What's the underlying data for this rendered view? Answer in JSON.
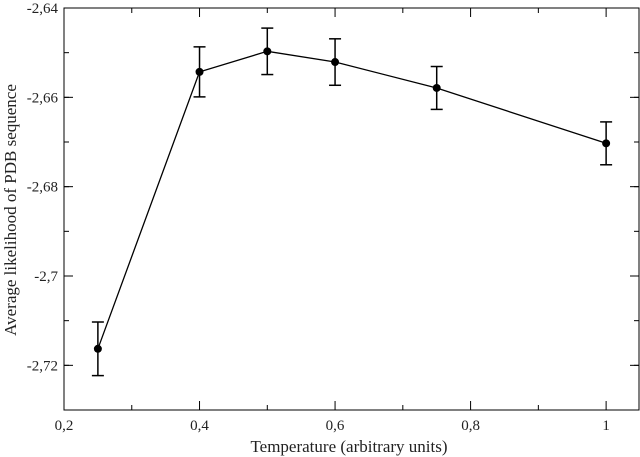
{
  "chart_data": {
    "type": "line",
    "xlabel": "Temperature (arbitrary units)",
    "ylabel": "Average likelihood of PDB sequence",
    "xlim": [
      0.2,
      1.05
    ],
    "ylim": [
      -2.73,
      -2.64
    ],
    "x_ticks": [
      0.2,
      0.4,
      0.6,
      0.8,
      1.0
    ],
    "x_tick_labels": [
      "0,2",
      "0,4",
      "0,6",
      "0,8",
      "1"
    ],
    "y_ticks": [
      -2.64,
      -2.66,
      -2.68,
      -2.7,
      -2.72
    ],
    "y_tick_labels": [
      "-2,64",
      "-2,66",
      "-2,68",
      "-2,7",
      "-2,72"
    ],
    "grid": false,
    "series": [
      {
        "x": [
          0.25,
          0.4,
          0.5,
          0.6,
          0.75,
          1.0
        ],
        "y": [
          -2.7163,
          -2.6543,
          -2.6497,
          -2.6521,
          -2.6579,
          -2.6703
        ],
        "err": [
          0.006,
          0.0056,
          0.0052,
          0.0052,
          0.0048,
          0.0048
        ]
      }
    ]
  }
}
